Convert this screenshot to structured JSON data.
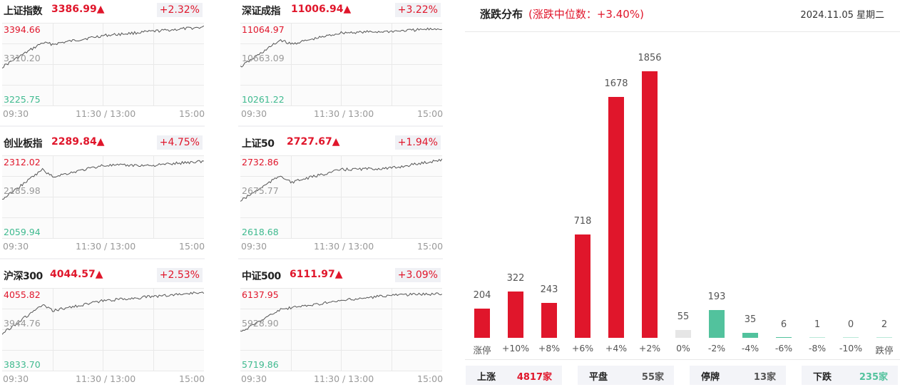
{
  "indices": [
    {
      "name": "上证指数",
      "price": "3386.99▲",
      "change_pct": "+2.32%",
      "high": "3394.66",
      "mid": "3310.20",
      "low": "3225.75",
      "x_start": "09:30",
      "x_mid": "11:30 / 13:00",
      "x_end": "15:00"
    },
    {
      "name": "深证成指",
      "price": "11006.94▲",
      "change_pct": "+3.22%",
      "high": "11064.97",
      "mid": "10663.09",
      "low": "10261.22",
      "x_start": "09:30",
      "x_mid": "11:30 / 13:00",
      "x_end": "15:00"
    },
    {
      "name": "创业板指",
      "price": "2289.84▲",
      "change_pct": "+4.75%",
      "high": "2312.02",
      "mid": "2185.98",
      "low": "2059.94",
      "x_start": "09:30",
      "x_mid": "11:30 / 13:00",
      "x_end": "15:00"
    },
    {
      "name": "上证50",
      "price": "2727.67▲",
      "change_pct": "+1.94%",
      "high": "2732.86",
      "mid": "2675.77",
      "low": "2618.68",
      "x_start": "09:30",
      "x_mid": "11:30 / 13:00",
      "x_end": "15:00"
    },
    {
      "name": "沪深300",
      "price": "4044.57▲",
      "change_pct": "+2.53%",
      "high": "4055.82",
      "mid": "3944.76",
      "low": "3833.70",
      "x_start": "09:30",
      "x_mid": "11:30 / 13:00",
      "x_end": "15:00"
    },
    {
      "name": "中证500",
      "price": "6111.97▲",
      "change_pct": "+3.09%",
      "high": "6137.95",
      "mid": "5928.90",
      "low": "5719.86",
      "x_start": "09:30",
      "x_mid": "11:30 / 13:00",
      "x_end": "15:00"
    }
  ],
  "distribution": {
    "title": "涨跌分布",
    "median": "(涨跌中位数：+3.40%)",
    "date": "2024.11.05 星期二",
    "colors": {
      "up": "#e0162b",
      "flat": "#e6e6e6",
      "down": "#52c29d",
      "down_light": "#b9e8d7"
    },
    "summary": [
      {
        "label": "上涨",
        "value": "4817家",
        "color": "#e0162b"
      },
      {
        "label": "平盘",
        "value": "55家",
        "color": "#555555"
      },
      {
        "label": "停牌",
        "value": "13家",
        "color": "#555555"
      },
      {
        "label": "下跌",
        "value": "235家",
        "color": "#52c29d"
      }
    ]
  },
  "chart_data": {
    "type": "bar",
    "title": "涨跌分布",
    "subtitle": "(涨跌中位数：+3.40%)",
    "categories": [
      "涨停",
      "+10%",
      "+8%",
      "+6%",
      "+4%",
      "+2%",
      "0%",
      "-2%",
      "-4%",
      "-6%",
      "-8%",
      "-10%",
      "跌停"
    ],
    "values": [
      204,
      322,
      243,
      718,
      1678,
      1856,
      55,
      193,
      35,
      6,
      1,
      0,
      2
    ],
    "xlabel": "",
    "ylabel": "",
    "grid": false
  }
}
